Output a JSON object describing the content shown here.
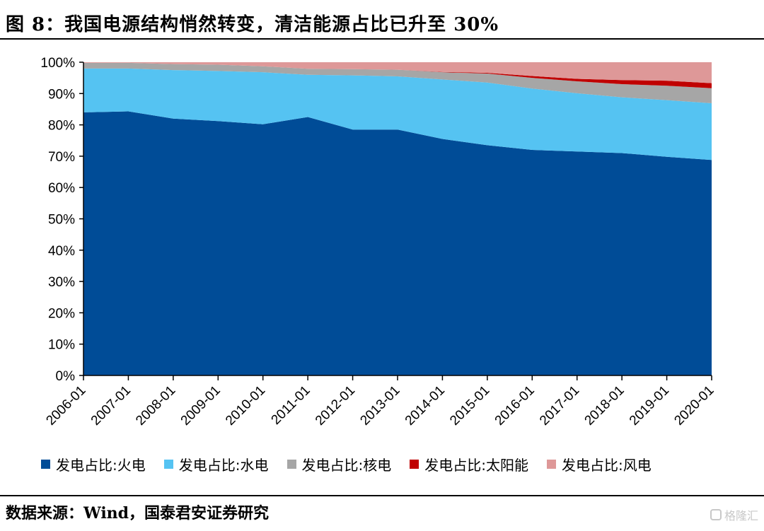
{
  "figure": {
    "title": "图 8：我国电源结构悄然转变，清洁能源占比已升至 30%",
    "source": "数据来源：Wind，国泰君安证券研究",
    "watermark": "格隆汇"
  },
  "colors": {
    "thermal": "#004C97",
    "hydro": "#55C3F2",
    "nuclear": "#A6A6A6",
    "solar": "#C00000",
    "wind": "#DE9898",
    "axis": "#000000"
  },
  "chart_data": {
    "type": "area",
    "stacked": true,
    "title": "",
    "xlabel": "",
    "ylabel": "",
    "ylim": [
      0,
      100
    ],
    "y_ticks": [
      "0%",
      "10%",
      "20%",
      "30%",
      "40%",
      "50%",
      "60%",
      "70%",
      "80%",
      "90%",
      "100%"
    ],
    "grid": false,
    "legend_position": "bottom",
    "categories": [
      "2006-01",
      "2007-01",
      "2008-01",
      "2009-01",
      "2010-01",
      "2011-01",
      "2012-01",
      "2013-01",
      "2014-01",
      "2015-01",
      "2016-01",
      "2017-01",
      "2018-01",
      "2019-01",
      "2020-01"
    ],
    "series": [
      {
        "key": "thermal",
        "name": "发电占比:火电",
        "values": [
          84.0,
          84.3,
          82.0,
          81.2,
          80.2,
          82.5,
          78.5,
          78.5,
          75.5,
          73.5,
          72.0,
          71.5,
          71.0,
          69.8,
          68.8
        ]
      },
      {
        "key": "hydro",
        "name": "发电占比:水电",
        "values": [
          14.0,
          13.7,
          15.5,
          16.0,
          16.6,
          13.5,
          17.3,
          17.0,
          19.0,
          20.0,
          19.6,
          18.6,
          17.8,
          18.1,
          18.1
        ]
      },
      {
        "key": "nuclear",
        "name": "发电占比:核电",
        "values": [
          1.8,
          1.8,
          1.9,
          2.0,
          1.9,
          1.9,
          2.0,
          2.1,
          2.3,
          2.9,
          3.4,
          3.8,
          4.2,
          4.6,
          4.8
        ]
      },
      {
        "key": "solar",
        "name": "发电占比:太阳能",
        "values": [
          0.0,
          0.0,
          0.0,
          0.0,
          0.0,
          0.0,
          0.0,
          0.0,
          0.1,
          0.2,
          0.6,
          0.8,
          1.3,
          1.6,
          1.6
        ]
      },
      {
        "key": "wind",
        "name": "发电占比:风电",
        "values": [
          0.2,
          0.2,
          0.6,
          0.8,
          1.3,
          2.1,
          2.2,
          2.4,
          3.1,
          3.4,
          4.4,
          5.3,
          5.7,
          5.9,
          6.7
        ]
      }
    ]
  }
}
